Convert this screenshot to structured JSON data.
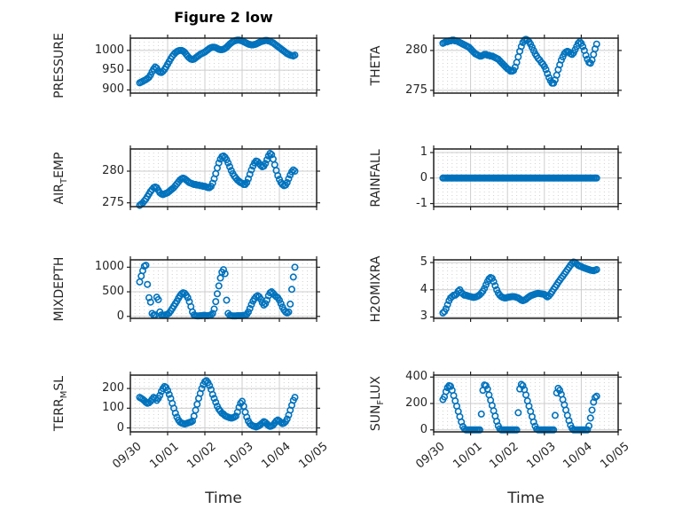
{
  "figure": {
    "title": "Figure 2 low",
    "xlabel": "Time",
    "marker_color": "#0072BD",
    "axis_color": "#1f1f1f",
    "major_grid_color": "#cccccc",
    "minor_grid_color": "#d2d2d2",
    "text_color": "#262626",
    "xtick_labels": [
      "09/30",
      "10/01",
      "10/02",
      "10/03",
      "10/04",
      "10/05"
    ],
    "xlim_hours": [
      0,
      120
    ],
    "xticks_hours": [
      0,
      24,
      48,
      72,
      96,
      120
    ],
    "x_start_hour": 6,
    "x_step_hours": 1
  },
  "chart_data": [
    {
      "type": "scatter",
      "id": "pressure",
      "row": 0,
      "col": 0,
      "ylabel_parts": [
        {
          "text": "PRESSURE",
          "sub": false
        }
      ],
      "yticks": [
        900,
        950,
        1000
      ],
      "ylim": [
        892,
        1031
      ],
      "x_axis": "time 09/30 to 10/05, hourly",
      "values": [
        918,
        920,
        922,
        924,
        926,
        929,
        932,
        938,
        946,
        953,
        958,
        955,
        948,
        945,
        944,
        947,
        952,
        958,
        965,
        972,
        979,
        985,
        990,
        994,
        997,
        999,
        1000,
        1000,
        998,
        995,
        990,
        985,
        981,
        978,
        977,
        978,
        981,
        984,
        987,
        990,
        992,
        994,
        996,
        999,
        1002,
        1005,
        1007,
        1008,
        1008,
        1007,
        1005,
        1003,
        1002,
        1002,
        1003,
        1005,
        1008,
        1012,
        1016,
        1019,
        1022,
        1024,
        1025,
        1026,
        1026,
        1025,
        1024,
        1022,
        1020,
        1018,
        1016,
        1015,
        1014,
        1014,
        1015,
        1016,
        1018,
        1020,
        1022,
        1023,
        1024,
        1025,
        1025,
        1024,
        1023,
        1021,
        1019,
        1016,
        1013,
        1010,
        1007,
        1004,
        1001,
        998,
        995,
        992,
        990,
        988,
        987,
        986,
        988
      ]
    },
    {
      "type": "scatter",
      "id": "theta",
      "row": 0,
      "col": 1,
      "ylabel_parts": [
        {
          "text": "THETA",
          "sub": false
        }
      ],
      "yticks": [
        275,
        280
      ],
      "ylim": [
        274.65,
        281.55
      ],
      "x_axis": "time 09/30 to 10/05, hourly",
      "values": [
        280.9,
        281.0,
        281.1,
        281.1,
        281.2,
        281.2,
        281.3,
        281.3,
        281.2,
        281.2,
        281.1,
        281.0,
        280.9,
        280.8,
        280.7,
        280.6,
        280.5,
        280.4,
        280.2,
        280.0,
        279.8,
        279.6,
        279.5,
        279.4,
        279.3,
        279.3,
        279.4,
        279.5,
        279.5,
        279.4,
        279.4,
        279.3,
        279.3,
        279.2,
        279.1,
        279.0,
        278.9,
        278.7,
        278.5,
        278.3,
        278.1,
        277.9,
        277.7,
        277.6,
        277.4,
        277.4,
        277.5,
        277.9,
        278.5,
        279.2,
        279.9,
        280.5,
        281.0,
        281.3,
        281.4,
        281.3,
        281.1,
        280.8,
        280.4,
        280.0,
        279.6,
        279.3,
        279.0,
        278.8,
        278.5,
        278.3,
        278.0,
        277.6,
        277.1,
        276.6,
        276.2,
        275.9,
        275.9,
        276.3,
        276.9,
        277.6,
        278.2,
        278.8,
        279.2,
        279.6,
        279.8,
        279.9,
        279.8,
        279.6,
        279.5,
        279.7,
        280.1,
        280.5,
        280.9,
        281.1,
        280.9,
        280.5,
        280.0,
        279.4,
        278.9,
        278.5,
        278.4,
        278.8,
        279.5,
        280.2,
        280.8
      ]
    },
    {
      "type": "scatter",
      "id": "airtemp",
      "row": 1,
      "col": 0,
      "ylabel_parts": [
        {
          "text": "AIR",
          "sub": false
        },
        {
          "text": "T",
          "sub": true
        },
        {
          "text": "EMP",
          "sub": false
        }
      ],
      "yticks": [
        275,
        280
      ],
      "ylim": [
        274.4,
        283.5
      ],
      "x_axis": "time 09/30 to 10/05, hourly",
      "values": [
        274.6,
        274.8,
        275.0,
        275.3,
        275.6,
        276.0,
        276.4,
        276.8,
        277.1,
        277.4,
        277.5,
        277.4,
        277.0,
        276.6,
        276.4,
        276.3,
        276.4,
        276.5,
        276.6,
        276.8,
        277.0,
        277.2,
        277.4,
        277.7,
        278.0,
        278.3,
        278.6,
        278.8,
        278.9,
        278.8,
        278.6,
        278.4,
        278.2,
        278.1,
        278.0,
        277.9,
        277.9,
        277.8,
        277.8,
        277.7,
        277.7,
        277.6,
        277.6,
        277.5,
        277.4,
        277.4,
        277.6,
        278.1,
        278.8,
        279.6,
        280.5,
        281.3,
        281.9,
        282.3,
        282.4,
        282.2,
        281.8,
        281.3,
        280.7,
        280.1,
        279.6,
        279.2,
        278.9,
        278.6,
        278.4,
        278.2,
        278.1,
        277.9,
        277.9,
        278.2,
        278.8,
        279.5,
        280.2,
        280.8,
        281.3,
        281.6,
        281.5,
        281.2,
        280.9,
        280.7,
        280.8,
        281.2,
        281.8,
        282.4,
        282.8,
        282.6,
        281.9,
        281.0,
        280.1,
        279.3,
        278.7,
        278.2,
        277.9,
        277.7,
        277.8,
        278.2,
        278.8,
        279.4,
        279.9,
        280.2,
        280.0
      ]
    },
    {
      "type": "scatter",
      "id": "rainfall",
      "row": 1,
      "col": 1,
      "ylabel_parts": [
        {
          "text": "RAINFALL",
          "sub": false
        }
      ],
      "yticks": [
        -1,
        0,
        1
      ],
      "ylim": [
        -1.12,
        1.14
      ],
      "x_axis": "time 09/30 to 10/05, hourly",
      "values": [
        0,
        0,
        0,
        0,
        0,
        0,
        0,
        0,
        0,
        0,
        0,
        0,
        0,
        0,
        0,
        0,
        0,
        0,
        0,
        0,
        0,
        0,
        0,
        0,
        0,
        0,
        0,
        0,
        0,
        0,
        0,
        0,
        0,
        0,
        0,
        0,
        0,
        0,
        0,
        0,
        0,
        0,
        0,
        0,
        0,
        0,
        0,
        0,
        0,
        0,
        0,
        0,
        0,
        0,
        0,
        0,
        0,
        0,
        0,
        0,
        0,
        0,
        0,
        0,
        0,
        0,
        0,
        0,
        0,
        0,
        0,
        0,
        0,
        0,
        0,
        0,
        0,
        0,
        0,
        0,
        0,
        0,
        0,
        0,
        0,
        0,
        0,
        0,
        0,
        0,
        0,
        0,
        0,
        0,
        0,
        0,
        0,
        0,
        0,
        0,
        0
      ]
    },
    {
      "type": "scatter",
      "id": "mixdepth",
      "row": 2,
      "col": 0,
      "ylabel_parts": [
        {
          "text": "MIXDEPTH",
          "sub": false
        }
      ],
      "yticks": [
        0,
        500,
        1000
      ],
      "ylim": [
        -40,
        1150
      ],
      "x_axis": "time 09/30 to 10/05, hourly",
      "values": [
        700,
        820,
        930,
        1020,
        1040,
        650,
        380,
        290,
        60,
        25,
        30,
        390,
        340,
        90,
        30,
        20,
        25,
        35,
        45,
        70,
        110,
        160,
        210,
        260,
        310,
        370,
        420,
        460,
        480,
        470,
        430,
        380,
        300,
        200,
        90,
        30,
        15,
        10,
        10,
        15,
        15,
        20,
        20,
        15,
        15,
        20,
        30,
        60,
        150,
        300,
        460,
        620,
        780,
        900,
        950,
        870,
        330,
        60,
        20,
        15,
        10,
        10,
        10,
        15,
        15,
        15,
        15,
        20,
        25,
        40,
        90,
        160,
        240,
        310,
        360,
        400,
        420,
        400,
        350,
        280,
        230,
        260,
        330,
        420,
        480,
        500,
        470,
        430,
        400,
        380,
        330,
        260,
        190,
        130,
        90,
        70,
        90,
        250,
        550,
        800,
        1000
      ]
    },
    {
      "type": "scatter",
      "id": "h2omixra",
      "row": 2,
      "col": 1,
      "ylabel_parts": [
        {
          "text": "H2OMIXRA",
          "sub": false
        }
      ],
      "yticks": [
        3,
        4,
        5
      ],
      "ylim": [
        2.95,
        5.1
      ],
      "x_axis": "time 09/30 to 10/05, hourly",
      "values": [
        3.15,
        3.2,
        3.3,
        3.45,
        3.6,
        3.7,
        3.75,
        3.8,
        3.8,
        3.85,
        3.95,
        4.0,
        3.9,
        3.85,
        3.8,
        3.8,
        3.78,
        3.76,
        3.75,
        3.73,
        3.72,
        3.73,
        3.75,
        3.78,
        3.82,
        3.88,
        3.95,
        4.05,
        4.18,
        4.3,
        4.4,
        4.45,
        4.42,
        4.3,
        4.15,
        4.0,
        3.88,
        3.8,
        3.75,
        3.72,
        3.7,
        3.7,
        3.72,
        3.73,
        3.74,
        3.75,
        3.75,
        3.74,
        3.72,
        3.7,
        3.66,
        3.62,
        3.6,
        3.62,
        3.65,
        3.7,
        3.74,
        3.78,
        3.8,
        3.82,
        3.84,
        3.86,
        3.87,
        3.86,
        3.85,
        3.84,
        3.83,
        3.78,
        3.74,
        3.78,
        3.85,
        3.93,
        4.02,
        4.1,
        4.18,
        4.27,
        4.35,
        4.43,
        4.5,
        4.58,
        4.66,
        4.74,
        4.82,
        4.9,
        4.97,
        5.02,
        5.0,
        4.95,
        4.9,
        4.87,
        4.85,
        4.82,
        4.8,
        4.78,
        4.76,
        4.74,
        4.72,
        4.71,
        4.7,
        4.72,
        4.74
      ]
    },
    {
      "type": "scatter",
      "id": "terrmsl",
      "row": 3,
      "col": 0,
      "ylabel_parts": [
        {
          "text": "TERR",
          "sub": false
        },
        {
          "text": "M",
          "sub": true
        },
        {
          "text": "SL",
          "sub": false
        }
      ],
      "yticks": [
        0,
        100,
        200
      ],
      "ylim": [
        -20,
        268
      ],
      "x_axis": "time 09/30 to 10/05, hourly",
      "values": [
        155,
        150,
        145,
        138,
        130,
        125,
        128,
        135,
        145,
        155,
        150,
        140,
        150,
        165,
        185,
        200,
        210,
        205,
        190,
        170,
        150,
        125,
        100,
        75,
        55,
        40,
        30,
        25,
        22,
        20,
        22,
        25,
        28,
        30,
        35,
        60,
        90,
        120,
        150,
        175,
        200,
        220,
        235,
        240,
        230,
        215,
        195,
        170,
        150,
        130,
        110,
        95,
        85,
        75,
        70,
        62,
        58,
        55,
        52,
        50,
        52,
        55,
        60,
        80,
        105,
        125,
        135,
        110,
        80,
        55,
        35,
        22,
        15,
        10,
        8,
        5,
        8,
        12,
        18,
        25,
        32,
        28,
        20,
        12,
        8,
        10,
        15,
        25,
        35,
        40,
        35,
        28,
        22,
        25,
        32,
        45,
        65,
        90,
        115,
        140,
        155
      ]
    },
    {
      "type": "scatter",
      "id": "sunflux",
      "row": 3,
      "col": 1,
      "ylabel_parts": [
        {
          "text": "SUN",
          "sub": false
        },
        {
          "text": "F",
          "sub": true
        },
        {
          "text": "LUX",
          "sub": false
        }
      ],
      "yticks": [
        0,
        200,
        400
      ],
      "ylim": [
        -15,
        415
      ],
      "x_axis": "time 09/30 to 10/05, hourly",
      "values": [
        230,
        250,
        290,
        320,
        335,
        330,
        300,
        260,
        220,
        180,
        140,
        100,
        60,
        25,
        8,
        0,
        0,
        0,
        0,
        0,
        0,
        0,
        0,
        0,
        0,
        120,
        300,
        340,
        335,
        310,
        265,
        225,
        185,
        145,
        105,
        65,
        30,
        8,
        0,
        0,
        0,
        0,
        0,
        0,
        0,
        0,
        0,
        0,
        0,
        130,
        310,
        345,
        335,
        305,
        265,
        220,
        180,
        140,
        100,
        60,
        28,
        6,
        0,
        0,
        0,
        0,
        0,
        0,
        0,
        0,
        0,
        0,
        0,
        110,
        280,
        315,
        300,
        270,
        230,
        190,
        150,
        110,
        70,
        35,
        12,
        0,
        0,
        0,
        0,
        0,
        0,
        0,
        0,
        0,
        0,
        30,
        90,
        150,
        210,
        245,
        255
      ]
    }
  ]
}
